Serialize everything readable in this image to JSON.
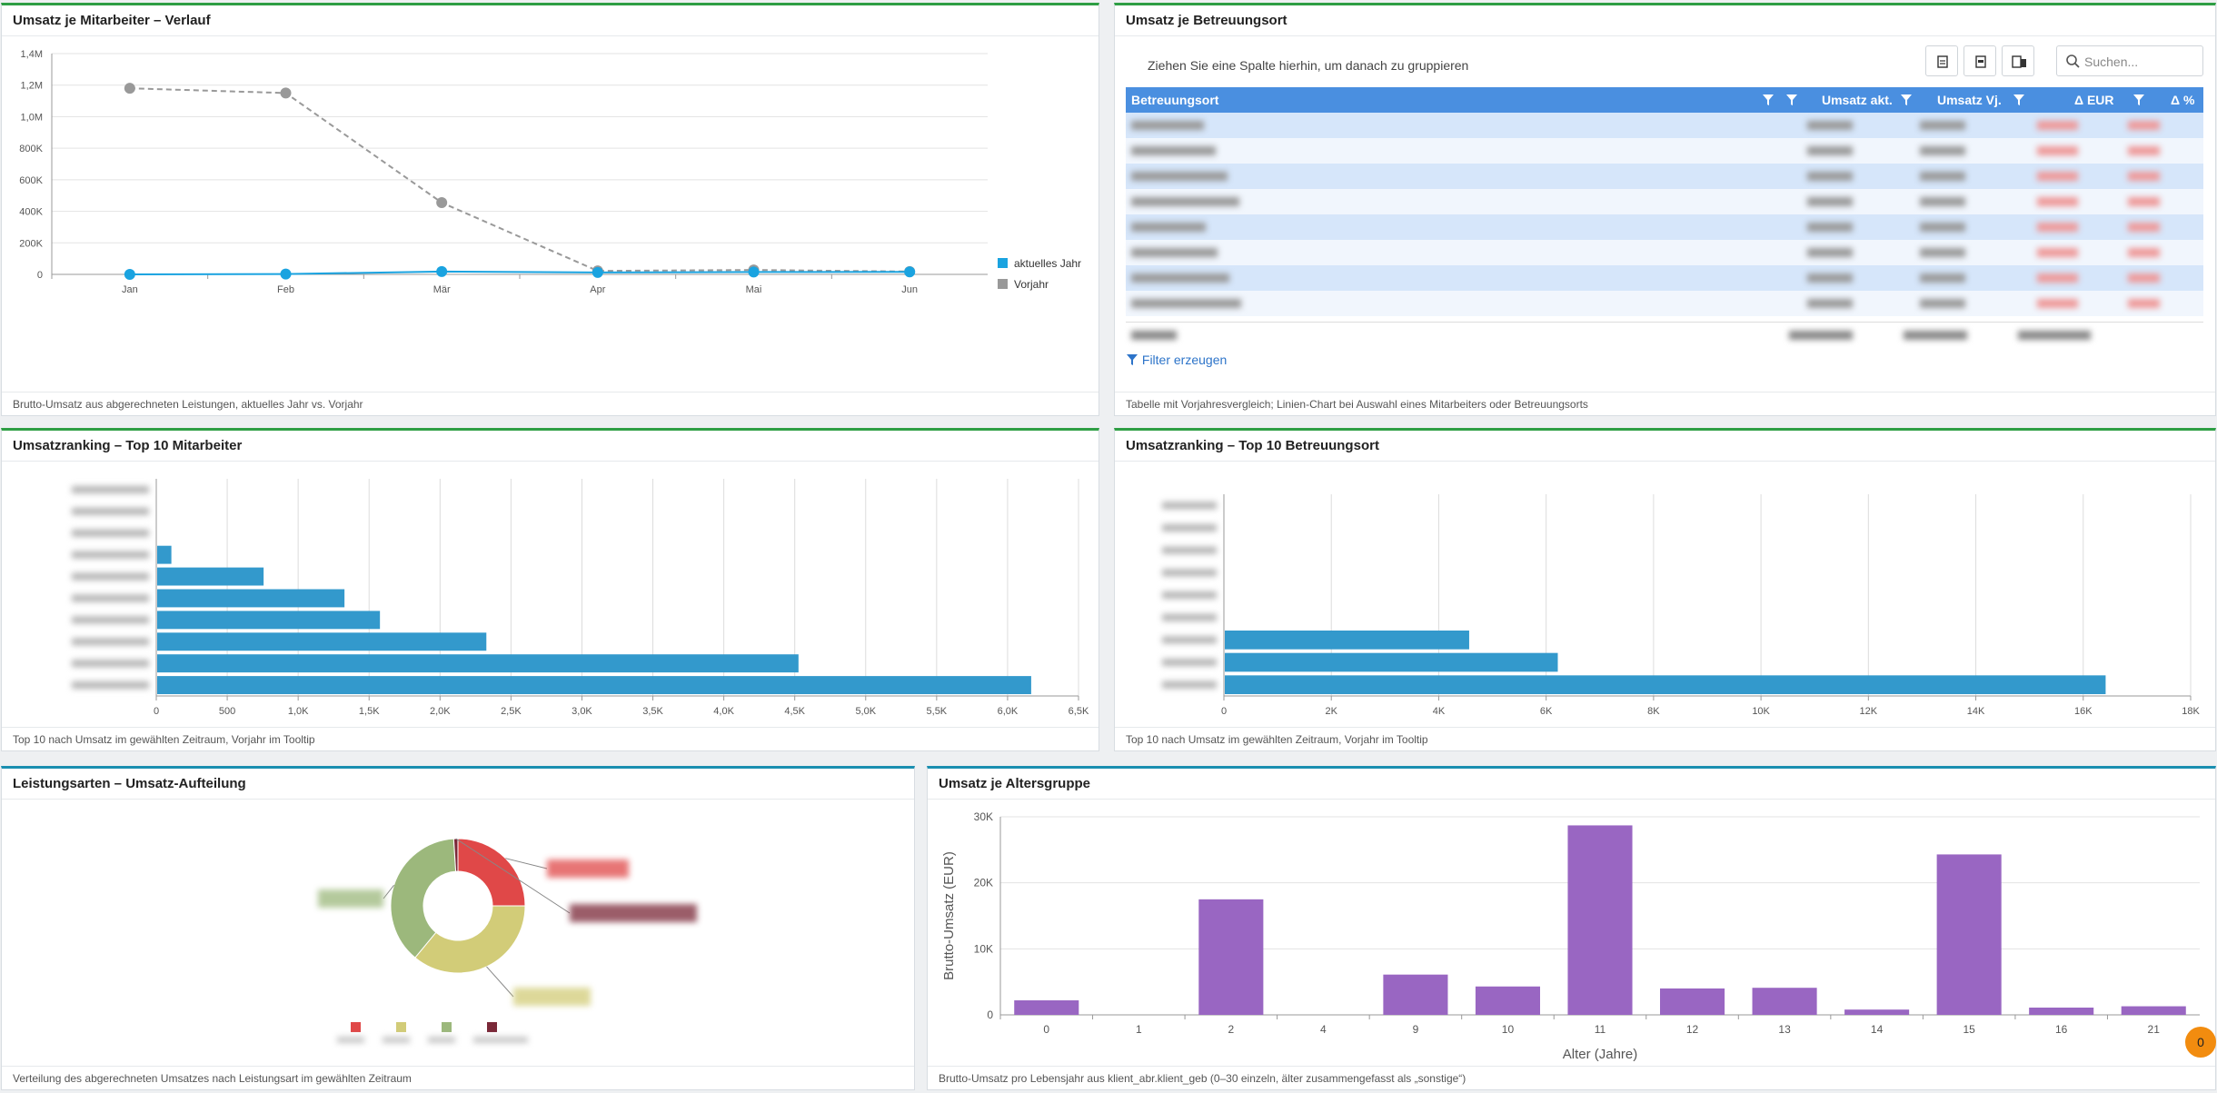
{
  "panels": {
    "verlauf": {
      "title": "Umsatz je Mitarbeiter – Verlauf",
      "footer": "Brutto-Umsatz aus abgerechneten Leistungen, aktuelles Jahr vs. Vorjahr"
    },
    "betreuungsort_table": {
      "title": "Umsatz je Betreuungsort",
      "footer": "Tabelle mit Vorjahresvergleich; Linien-Chart bei Auswahl eines Mitarbeiters oder Betreuungsorts"
    },
    "ranking_mitarbeiter": {
      "title": "Umsatzranking – Top 10 Mitarbeiter",
      "footer": "Top 10 nach Umsatz im gewählten Zeitraum, Vorjahr im Tooltip"
    },
    "ranking_betreuungsort": {
      "title": "Umsatzranking – Top 10 Betreuungsort",
      "footer": "Top 10 nach Umsatz im gewählten Zeitraum, Vorjahr im Tooltip"
    },
    "leistungsarten": {
      "title": "Leistungsarten – Umsatz-Aufteilung",
      "footer": "Verteilung des abgerechneten Umsatzes nach Leistungsart im gewählten Zeitraum"
    },
    "altersgruppe": {
      "title": "Umsatz je Altersgruppe",
      "footer": "Brutto-Umsatz pro Lebensjahr aus klient_abr.klient_geb (0–30 einzeln, älter zusammengefasst als „sonstige“)"
    }
  },
  "table": {
    "group_hint": "Ziehen Sie eine Spalte hierhin, um danach zu gruppieren",
    "search_placeholder": "Suchen...",
    "columns": [
      "Betreuungsort",
      "Umsatz akt.",
      "Umsatz Vj.",
      "Δ EUR",
      "Δ %"
    ],
    "filter_link": "Filter erzeugen",
    "row_count": 8,
    "badge_count": "0"
  },
  "colors": {
    "accent_green": "#2e9e44",
    "bar_blue": "#3399cc",
    "line_current": "#1aa3e0",
    "line_previous": "#999999",
    "bar_purple": "#9966c2",
    "table_header": "#4a8fe0",
    "badge": "#f28c0f"
  },
  "chart_data": [
    {
      "id": "verlauf",
      "type": "line",
      "categories": [
        "Jan",
        "Feb",
        "Mär",
        "Apr",
        "Mai",
        "Jun"
      ],
      "series": [
        {
          "name": "aktuelles Jahr",
          "values": [
            0,
            2000,
            18000,
            12000,
            15000,
            16000
          ]
        },
        {
          "name": "Vorjahr",
          "values": [
            1180000,
            1150000,
            455000,
            22000,
            28000,
            18000
          ]
        }
      ],
      "yticks": [
        "0",
        "200K",
        "400K",
        "600K",
        "800K",
        "1,0M",
        "1,2M",
        "1,4M"
      ],
      "ylim": [
        0,
        1400000
      ],
      "legend": "right"
    },
    {
      "id": "ranking_mitarbeiter",
      "type": "bar",
      "orientation": "horizontal",
      "values": [
        0,
        0,
        0,
        100,
        750,
        1320,
        1570,
        2320,
        4520,
        6160
      ],
      "xticks": [
        "0",
        "500",
        "1,0K",
        "1,5K",
        "2,0K",
        "2,5K",
        "3,0K",
        "3,5K",
        "4,0K",
        "4,5K",
        "5,0K",
        "5,5K",
        "6,0K",
        "6,5K"
      ],
      "xlim": [
        0,
        6500
      ]
    },
    {
      "id": "ranking_betreuungsort",
      "type": "bar",
      "orientation": "horizontal",
      "values": [
        0,
        0,
        0,
        0,
        0,
        0,
        4550,
        6200,
        16400
      ],
      "xticks": [
        "0",
        "2K",
        "4K",
        "6K",
        "8K",
        "10K",
        "12K",
        "14K",
        "16K",
        "18K"
      ],
      "xlim": [
        0,
        18000
      ]
    },
    {
      "id": "leistungsarten",
      "type": "pie",
      "slices": [
        {
          "color": "#e04848",
          "share": 0.25
        },
        {
          "color": "#d2cc78",
          "share": 0.36
        },
        {
          "color": "#9cb87c",
          "share": 0.38
        },
        {
          "color": "#7a2838",
          "share": 0.01
        }
      ]
    },
    {
      "id": "altersgruppe",
      "type": "bar",
      "categories": [
        "0",
        "1",
        "2",
        "4",
        "9",
        "10",
        "11",
        "12",
        "13",
        "14",
        "15",
        "16",
        "21"
      ],
      "values": [
        2200,
        0,
        17500,
        0,
        6100,
        4300,
        28700,
        4000,
        4100,
        800,
        24300,
        1100,
        1300
      ],
      "yticks": [
        "0",
        "10K",
        "20K",
        "30K"
      ],
      "ylim": [
        0,
        30000
      ],
      "xlabel": "Alter (Jahre)",
      "ylabel": "Brutto-Umsatz (EUR)"
    }
  ]
}
